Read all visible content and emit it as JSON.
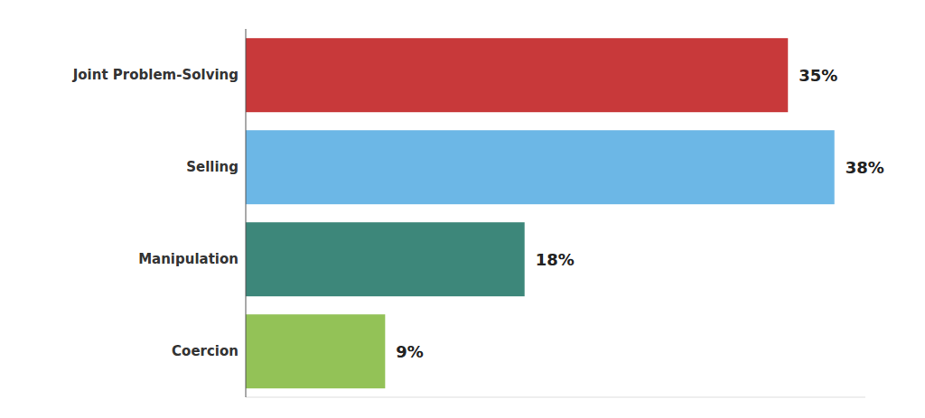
{
  "chart_data": {
    "type": "bar",
    "orientation": "horizontal",
    "categories": [
      "Joint Problem-Solving",
      "Selling",
      "Manipulation",
      "Coercion"
    ],
    "values": [
      35,
      38,
      18,
      9
    ],
    "value_labels": [
      "35%",
      "38%",
      "18%",
      "9%"
    ],
    "colors": [
      "#c8393a",
      "#6cb7e6",
      "#3d877a",
      "#93c257"
    ],
    "xlim": [
      0,
      40
    ],
    "grid": false,
    "data_labels": true,
    "tick_labels": "y"
  }
}
